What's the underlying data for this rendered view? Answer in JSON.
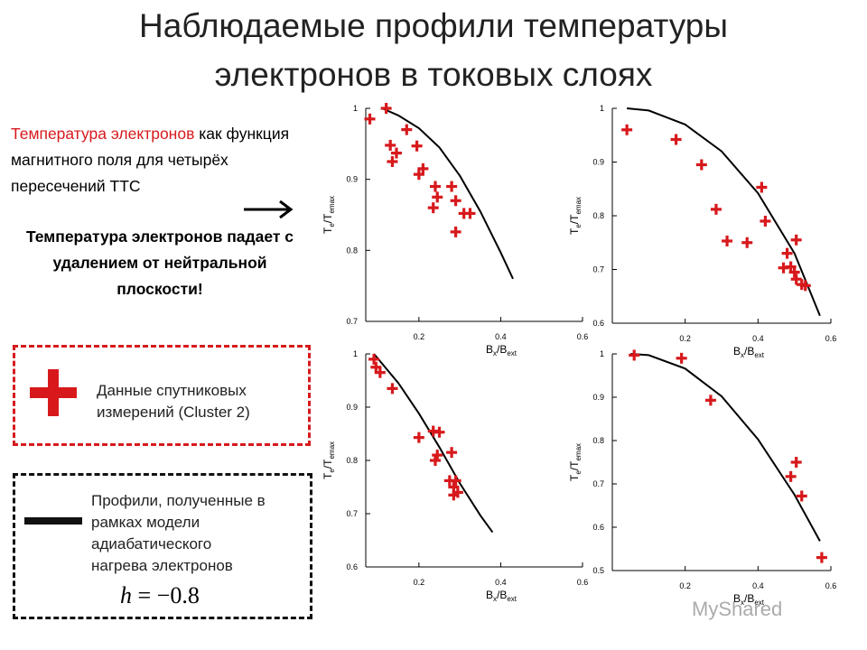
{
  "title": {
    "line1": "Наблюдаемые профили температуры",
    "line2": "электронов в токовых слоях"
  },
  "description": {
    "highlight": "Температура электронов",
    "rest": " как функция магнитного поля для четырёх пересечений ТТС"
  },
  "note": "Температура электронов падает с удалением от нейтральной плоскости!",
  "legend": {
    "data_label_line1": "Данные спутниковых",
    "data_label_line2": "измерений (Cluster 2)",
    "model_line1": "Профили, полученные в",
    "model_line2": "рамках модели",
    "model_line3": "адиабатического",
    "model_line4": "нагрева электронов",
    "formula_lhs": "h",
    "formula_rhs": " = −0.8"
  },
  "watermark": "MyShared",
  "colors": {
    "marker": "#d7191c",
    "curve": "#000000"
  },
  "chart_data": [
    {
      "type": "scatter",
      "xlabel_main": "B",
      "xlabel_sub1": "x",
      "xlabel_slash": "/B",
      "xlabel_sub2": "ext",
      "ylabel_main": "T",
      "ylabel_sub1": "e",
      "ylabel_slash": "/T",
      "ylabel_sub2": "emax",
      "xlim": [
        0.07,
        0.6
      ],
      "ylim": [
        0.7,
        1.0
      ],
      "xticks": [
        "0.2",
        "0.4",
        "0.6"
      ],
      "xtick_values": [
        0.2,
        0.4,
        0.6
      ],
      "yticks": [
        "0.7",
        "0.8",
        "0.9",
        "1"
      ],
      "ytick_values": [
        0.7,
        0.8,
        0.9,
        1.0
      ],
      "points": [
        [
          0.08,
          0.985
        ],
        [
          0.12,
          1.0
        ],
        [
          0.17,
          0.97
        ],
        [
          0.13,
          0.948
        ],
        [
          0.145,
          0.937
        ],
        [
          0.135,
          0.925
        ],
        [
          0.195,
          0.947
        ],
        [
          0.21,
          0.915
        ],
        [
          0.2,
          0.907
        ],
        [
          0.24,
          0.89
        ],
        [
          0.28,
          0.89
        ],
        [
          0.245,
          0.875
        ],
        [
          0.235,
          0.86
        ],
        [
          0.29,
          0.87
        ],
        [
          0.31,
          0.852
        ],
        [
          0.325,
          0.852
        ],
        [
          0.29,
          0.826
        ]
      ],
      "curve": [
        [
          0.11,
          1.0
        ],
        [
          0.15,
          0.99
        ],
        [
          0.2,
          0.972
        ],
        [
          0.25,
          0.945
        ],
        [
          0.3,
          0.905
        ],
        [
          0.35,
          0.855
        ],
        [
          0.4,
          0.797
        ],
        [
          0.43,
          0.76
        ]
      ]
    },
    {
      "type": "scatter",
      "xlabel_main": "B",
      "xlabel_sub1": "x",
      "xlabel_slash": "/B",
      "xlabel_sub2": "ext",
      "ylabel_main": "T",
      "ylabel_sub1": "e",
      "ylabel_slash": "/T",
      "ylabel_sub2": "emax",
      "xlim": [
        0.0,
        0.6
      ],
      "ylim": [
        0.6,
        1.0
      ],
      "xticks": [
        "0.2",
        "0.4",
        "0.6"
      ],
      "xtick_values": [
        0.2,
        0.4,
        0.6
      ],
      "yticks": [
        "0.6",
        "0.7",
        "0.8",
        "0.9",
        "1"
      ],
      "ytick_values": [
        0.6,
        0.7,
        0.8,
        0.9,
        1.0
      ],
      "points": [
        [
          0.04,
          0.96
        ],
        [
          0.175,
          0.942
        ],
        [
          0.245,
          0.895
        ],
        [
          0.285,
          0.812
        ],
        [
          0.315,
          0.753
        ],
        [
          0.37,
          0.75
        ],
        [
          0.41,
          0.853
        ],
        [
          0.42,
          0.79
        ],
        [
          0.47,
          0.703
        ],
        [
          0.48,
          0.73
        ],
        [
          0.49,
          0.705
        ],
        [
          0.505,
          0.755
        ],
        [
          0.5,
          0.695
        ],
        [
          0.505,
          0.682
        ],
        [
          0.52,
          0.672
        ],
        [
          0.53,
          0.67
        ]
      ],
      "curve": [
        [
          0.04,
          1.0
        ],
        [
          0.1,
          0.996
        ],
        [
          0.2,
          0.97
        ],
        [
          0.3,
          0.92
        ],
        [
          0.4,
          0.842
        ],
        [
          0.5,
          0.73
        ],
        [
          0.57,
          0.614
        ]
      ]
    },
    {
      "type": "scatter",
      "xlabel_main": "B",
      "xlabel_sub1": "x",
      "xlabel_slash": "/B",
      "xlabel_sub2": "ext",
      "ylabel_main": "T",
      "ylabel_sub1": "e",
      "ylabel_slash": "/T",
      "ylabel_sub2": "emax",
      "xlim": [
        0.07,
        0.6
      ],
      "ylim": [
        0.6,
        1.0
      ],
      "xticks": [
        "0.2",
        "0.4",
        "0.6"
      ],
      "xtick_values": [
        0.2,
        0.4,
        0.6
      ],
      "yticks": [
        "0.6",
        "0.7",
        "0.8",
        "0.9",
        "1"
      ],
      "ytick_values": [
        0.6,
        0.7,
        0.8,
        0.9,
        1.0
      ],
      "points": [
        [
          0.09,
          0.99
        ],
        [
          0.095,
          0.975
        ],
        [
          0.105,
          0.965
        ],
        [
          0.135,
          0.935
        ],
        [
          0.2,
          0.843
        ],
        [
          0.235,
          0.855
        ],
        [
          0.25,
          0.853
        ],
        [
          0.245,
          0.81
        ],
        [
          0.24,
          0.8
        ],
        [
          0.28,
          0.815
        ],
        [
          0.275,
          0.762
        ],
        [
          0.29,
          0.762
        ],
        [
          0.285,
          0.75
        ],
        [
          0.295,
          0.74
        ],
        [
          0.285,
          0.735
        ]
      ],
      "curve": [
        [
          0.09,
          1.0
        ],
        [
          0.15,
          0.945
        ],
        [
          0.2,
          0.888
        ],
        [
          0.25,
          0.825
        ],
        [
          0.3,
          0.757
        ],
        [
          0.35,
          0.697
        ],
        [
          0.38,
          0.665
        ]
      ]
    },
    {
      "type": "scatter",
      "xlabel_main": "B",
      "xlabel_sub1": "x",
      "xlabel_slash": "/B",
      "xlabel_sub2": "ext",
      "ylabel_main": "T",
      "ylabel_sub1": "e",
      "ylabel_slash": "/T",
      "ylabel_sub2": "emax",
      "xlim": [
        0.0,
        0.6
      ],
      "ylim": [
        0.5,
        1.0
      ],
      "xticks": [
        "0.2",
        "0.4",
        "0.6"
      ],
      "xtick_values": [
        0.2,
        0.4,
        0.6
      ],
      "yticks": [
        "0.5",
        "0.6",
        "0.7",
        "0.8",
        "0.9",
        "1"
      ],
      "ytick_values": [
        0.5,
        0.6,
        0.7,
        0.8,
        0.9,
        1.0
      ],
      "points": [
        [
          0.06,
          0.997
        ],
        [
          0.19,
          0.99
        ],
        [
          0.27,
          0.893
        ],
        [
          0.49,
          0.717
        ],
        [
          0.505,
          0.75
        ],
        [
          0.52,
          0.672
        ],
        [
          0.575,
          0.53
        ]
      ],
      "curve": [
        [
          0.05,
          1.0
        ],
        [
          0.1,
          0.997
        ],
        [
          0.2,
          0.966
        ],
        [
          0.3,
          0.902
        ],
        [
          0.4,
          0.803
        ],
        [
          0.5,
          0.675
        ],
        [
          0.57,
          0.568
        ]
      ]
    }
  ]
}
